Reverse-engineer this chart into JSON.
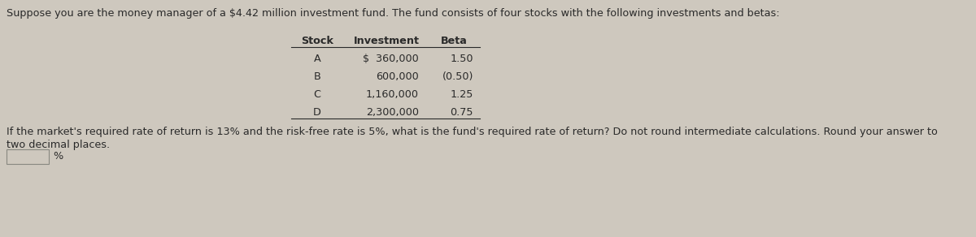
{
  "title_text": "Suppose you are the money manager of a $4.42 million investment fund. The fund consists of four stocks with the following investments and betas:",
  "col_headers": [
    "Stock",
    "Investment",
    "Beta"
  ],
  "rows": [
    [
      "A",
      "$  360,000",
      "1.50"
    ],
    [
      "B",
      "600,000",
      "(0.50)"
    ],
    [
      "C",
      "1,160,000",
      "1.25"
    ],
    [
      "D",
      "2,300,000",
      "0.75"
    ]
  ],
  "footer_line1": "If the market's required rate of return is 13% and the risk-free rate is 5%, what is the fund's required rate of return? Do not round intermediate calculations. Round your answer to",
  "footer_line2": "two decimal places.",
  "input_label": "%",
  "bg_color": "#cec8be",
  "text_color": "#2a2a2a",
  "title_fontsize": 9.2,
  "table_fontsize": 9.2,
  "footer_fontsize": 9.2
}
